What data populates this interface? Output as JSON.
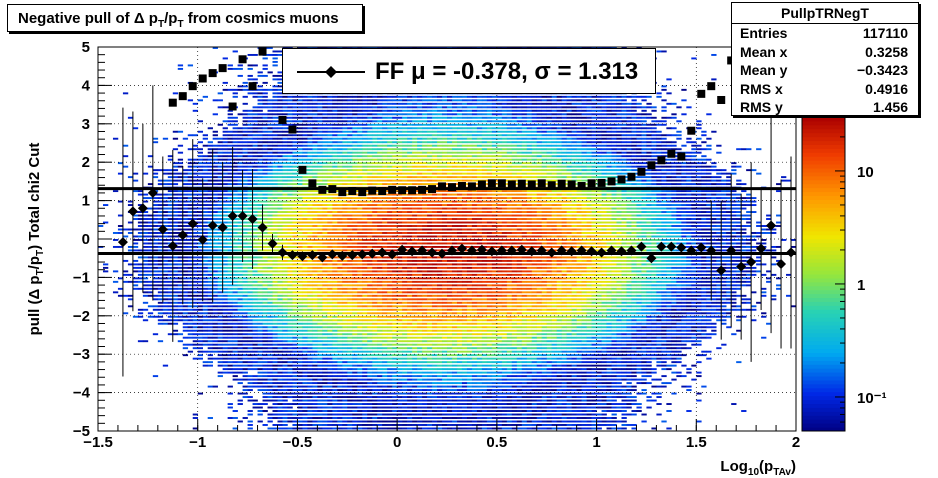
{
  "title_segments": [
    {
      "text": "Negative pull of ",
      "cls": "n"
    },
    {
      "text": "Δ p",
      "cls": "n"
    },
    {
      "text": "T",
      "cls": "sub"
    },
    {
      "text": "/p",
      "cls": "n"
    },
    {
      "text": "T",
      "cls": "sub"
    },
    {
      "text": " from cosmics muons",
      "cls": "n"
    }
  ],
  "stats": {
    "name": "PullpTRNegT",
    "rows": [
      {
        "key": "Entries",
        "value": "117110"
      },
      {
        "key": "Mean x",
        "value": "0.3258"
      },
      {
        "key": "Mean y",
        "value": "−0.3423"
      },
      {
        "key": "RMS x",
        "value": "0.4916"
      },
      {
        "key": "RMS y",
        "value": "1.456"
      }
    ]
  },
  "legend": {
    "entry": "FF μ = -0.378, σ =   1.313"
  },
  "chart_data": {
    "type": "heatmap",
    "xlabel_segments": [
      {
        "text": "Log",
        "cls": "n"
      },
      {
        "text": "10",
        "cls": "sub"
      },
      {
        "text": "(p",
        "cls": "n"
      },
      {
        "text": "TAv",
        "cls": "sub"
      },
      {
        "text": ")",
        "cls": "n"
      }
    ],
    "ylabel_segments": [
      {
        "text": "pull (Δ p",
        "cls": "n"
      },
      {
        "text": "T",
        "cls": "sub"
      },
      {
        "text": "/p",
        "cls": "n"
      },
      {
        "text": "T",
        "cls": "sub"
      },
      {
        "text": ")  Total chi2 Cut",
        "cls": "n"
      }
    ],
    "xlim": [
      -1.5,
      2
    ],
    "ylim": [
      -5,
      5
    ],
    "x_ticks": [
      {
        "v": -1.5,
        "label": "−1.5"
      },
      {
        "v": -1,
        "label": "−1"
      },
      {
        "v": -0.5,
        "label": "−0.5"
      },
      {
        "v": 0,
        "label": "0"
      },
      {
        "v": 0.5,
        "label": "0.5"
      },
      {
        "v": 1,
        "label": "1"
      },
      {
        "v": 1.5,
        "label": "1.5"
      },
      {
        "v": 2,
        "label": "2"
      }
    ],
    "y_ticks": [
      {
        "v": -5,
        "label": "−5"
      },
      {
        "v": -4,
        "label": "−4"
      },
      {
        "v": -3,
        "label": "−3"
      },
      {
        "v": -2,
        "label": "−2"
      },
      {
        "v": -1,
        "label": "−1"
      },
      {
        "v": 0,
        "label": "0"
      },
      {
        "v": 1,
        "label": "1"
      },
      {
        "v": 2,
        "label": "2"
      },
      {
        "v": 3,
        "label": "3"
      },
      {
        "v": 4,
        "label": "4"
      },
      {
        "v": 5,
        "label": "5"
      }
    ],
    "grid": true,
    "colorbar": {
      "scale": "log",
      "range": [
        0.05,
        30
      ],
      "ticks": [
        {
          "v": 10,
          "label": "10"
        },
        {
          "v": 1,
          "label": "1"
        },
        {
          "v": 0.1,
          "label": "10⁻¹"
        }
      ]
    },
    "density": {
      "x_center": 0.25,
      "x_sigma": 0.38,
      "y_center": -0.3,
      "y_sigma": 1.0,
      "peak": 25
    },
    "mean_line": -0.378,
    "sigma_line": 1.313,
    "sigma_points": [
      [
        -1.125,
        3.55
      ],
      [
        -1.075,
        3.72
      ],
      [
        -1.025,
        3.98
      ],
      [
        -0.975,
        4.18
      ],
      [
        -0.925,
        4.32
      ],
      [
        -0.875,
        4.45
      ],
      [
        -0.825,
        3.45
      ],
      [
        -0.775,
        4.68
      ],
      [
        -0.725,
        3.98
      ],
      [
        -0.675,
        4.88
      ],
      [
        -0.575,
        3.1
      ],
      [
        -0.525,
        2.85
      ],
      [
        -0.475,
        1.8
      ],
      [
        -0.425,
        1.45
      ],
      [
        -0.375,
        1.28
      ],
      [
        -0.325,
        1.3
      ],
      [
        -0.275,
        1.22
      ],
      [
        -0.225,
        1.25
      ],
      [
        -0.175,
        1.22
      ],
      [
        -0.125,
        1.26
      ],
      [
        -0.075,
        1.25
      ],
      [
        -0.025,
        1.28
      ],
      [
        0.025,
        1.27
      ],
      [
        0.075,
        1.27
      ],
      [
        0.125,
        1.28
      ],
      [
        0.175,
        1.3
      ],
      [
        0.225,
        1.37
      ],
      [
        0.275,
        1.35
      ],
      [
        0.325,
        1.38
      ],
      [
        0.375,
        1.37
      ],
      [
        0.425,
        1.42
      ],
      [
        0.475,
        1.45
      ],
      [
        0.525,
        1.45
      ],
      [
        0.575,
        1.42
      ],
      [
        0.625,
        1.44
      ],
      [
        0.675,
        1.42
      ],
      [
        0.725,
        1.45
      ],
      [
        0.775,
        1.4
      ],
      [
        0.825,
        1.44
      ],
      [
        0.875,
        1.42
      ],
      [
        0.925,
        1.38
      ],
      [
        0.975,
        1.45
      ],
      [
        1.025,
        1.46
      ],
      [
        1.075,
        1.5
      ],
      [
        1.125,
        1.55
      ],
      [
        1.175,
        1.62
      ],
      [
        1.225,
        1.75
      ],
      [
        1.275,
        1.92
      ],
      [
        1.325,
        2.05
      ],
      [
        1.375,
        2.22
      ],
      [
        1.425,
        2.15
      ],
      [
        1.475,
        2.82
      ],
      [
        1.525,
        3.78
      ],
      [
        1.575,
        3.98
      ],
      [
        1.625,
        3.62
      ],
      [
        1.675,
        4.65
      ]
    ],
    "mean_points": [
      [
        -1.375,
        -0.08
      ],
      [
        -1.325,
        0.72
      ],
      [
        -1.275,
        0.8
      ],
      [
        -1.225,
        1.2
      ],
      [
        -1.175,
        0.25
      ],
      [
        -1.125,
        -0.18
      ],
      [
        -1.075,
        0.1
      ],
      [
        -1.025,
        0.4
      ],
      [
        -0.975,
        -0.02
      ],
      [
        -0.925,
        0.35
      ],
      [
        -0.875,
        0.3
      ],
      [
        -0.825,
        0.6
      ],
      [
        -0.775,
        0.6
      ],
      [
        -0.725,
        0.52
      ],
      [
        -0.675,
        0.3
      ],
      [
        -0.625,
        -0.12
      ],
      [
        -0.575,
        -0.35
      ],
      [
        -0.525,
        -0.42
      ],
      [
        -0.475,
        -0.45
      ],
      [
        -0.425,
        -0.42
      ],
      [
        -0.375,
        -0.48
      ],
      [
        -0.325,
        -0.4
      ],
      [
        -0.275,
        -0.44
      ],
      [
        -0.225,
        -0.42
      ],
      [
        -0.175,
        -0.4
      ],
      [
        -0.125,
        -0.38
      ],
      [
        -0.075,
        -0.35
      ],
      [
        -0.025,
        -0.4
      ],
      [
        0.025,
        -0.28
      ],
      [
        0.075,
        -0.32
      ],
      [
        0.125,
        -0.3
      ],
      [
        0.175,
        -0.35
      ],
      [
        0.225,
        -0.38
      ],
      [
        0.275,
        -0.3
      ],
      [
        0.325,
        -0.25
      ],
      [
        0.375,
        -0.3
      ],
      [
        0.425,
        -0.28
      ],
      [
        0.475,
        -0.32
      ],
      [
        0.525,
        -0.3
      ],
      [
        0.575,
        -0.3
      ],
      [
        0.625,
        -0.28
      ],
      [
        0.675,
        -0.32
      ],
      [
        0.725,
        -0.3
      ],
      [
        0.775,
        -0.35
      ],
      [
        0.825,
        -0.3
      ],
      [
        0.875,
        -0.32
      ],
      [
        0.925,
        -0.3
      ],
      [
        0.975,
        -0.32
      ],
      [
        1.025,
        -0.35
      ],
      [
        1.075,
        -0.3
      ],
      [
        1.125,
        -0.32
      ],
      [
        1.175,
        -0.3
      ],
      [
        1.225,
        -0.2
      ],
      [
        1.275,
        -0.5
      ],
      [
        1.325,
        -0.2
      ],
      [
        1.375,
        -0.2
      ],
      [
        1.425,
        -0.22
      ],
      [
        1.475,
        -0.3
      ],
      [
        1.525,
        -0.22
      ],
      [
        1.575,
        -0.3
      ],
      [
        1.625,
        -0.82
      ],
      [
        1.675,
        -0.3
      ],
      [
        1.725,
        -0.72
      ],
      [
        1.775,
        -0.6
      ],
      [
        1.825,
        -0.25
      ],
      [
        1.875,
        0.35
      ],
      [
        1.925,
        -0.65
      ],
      [
        1.975,
        -0.35
      ]
    ],
    "error_bars": [
      [
        -1.375,
        3.5
      ],
      [
        -1.325,
        2.6
      ],
      [
        -1.275,
        2.2
      ],
      [
        -1.225,
        2.8
      ],
      [
        -1.175,
        1.9
      ],
      [
        -1.125,
        2.5
      ],
      [
        -1.075,
        1.8
      ],
      [
        -1.025,
        2.2
      ],
      [
        -0.975,
        1.6
      ],
      [
        -0.925,
        2.0
      ],
      [
        -0.875,
        1.7
      ],
      [
        -0.825,
        1.8
      ],
      [
        -0.775,
        1.2
      ],
      [
        -0.725,
        1.3
      ],
      [
        -0.675,
        0.6
      ],
      [
        -0.625,
        0.25
      ],
      [
        -0.575,
        0.2
      ],
      [
        1.575,
        1.3
      ],
      [
        1.625,
        1.8
      ],
      [
        1.675,
        2.0
      ],
      [
        1.725,
        1.9
      ],
      [
        1.775,
        2.6
      ],
      [
        1.825,
        1.6
      ],
      [
        1.875,
        2.8
      ],
      [
        1.925,
        2.2
      ],
      [
        1.975,
        2.5
      ]
    ]
  }
}
